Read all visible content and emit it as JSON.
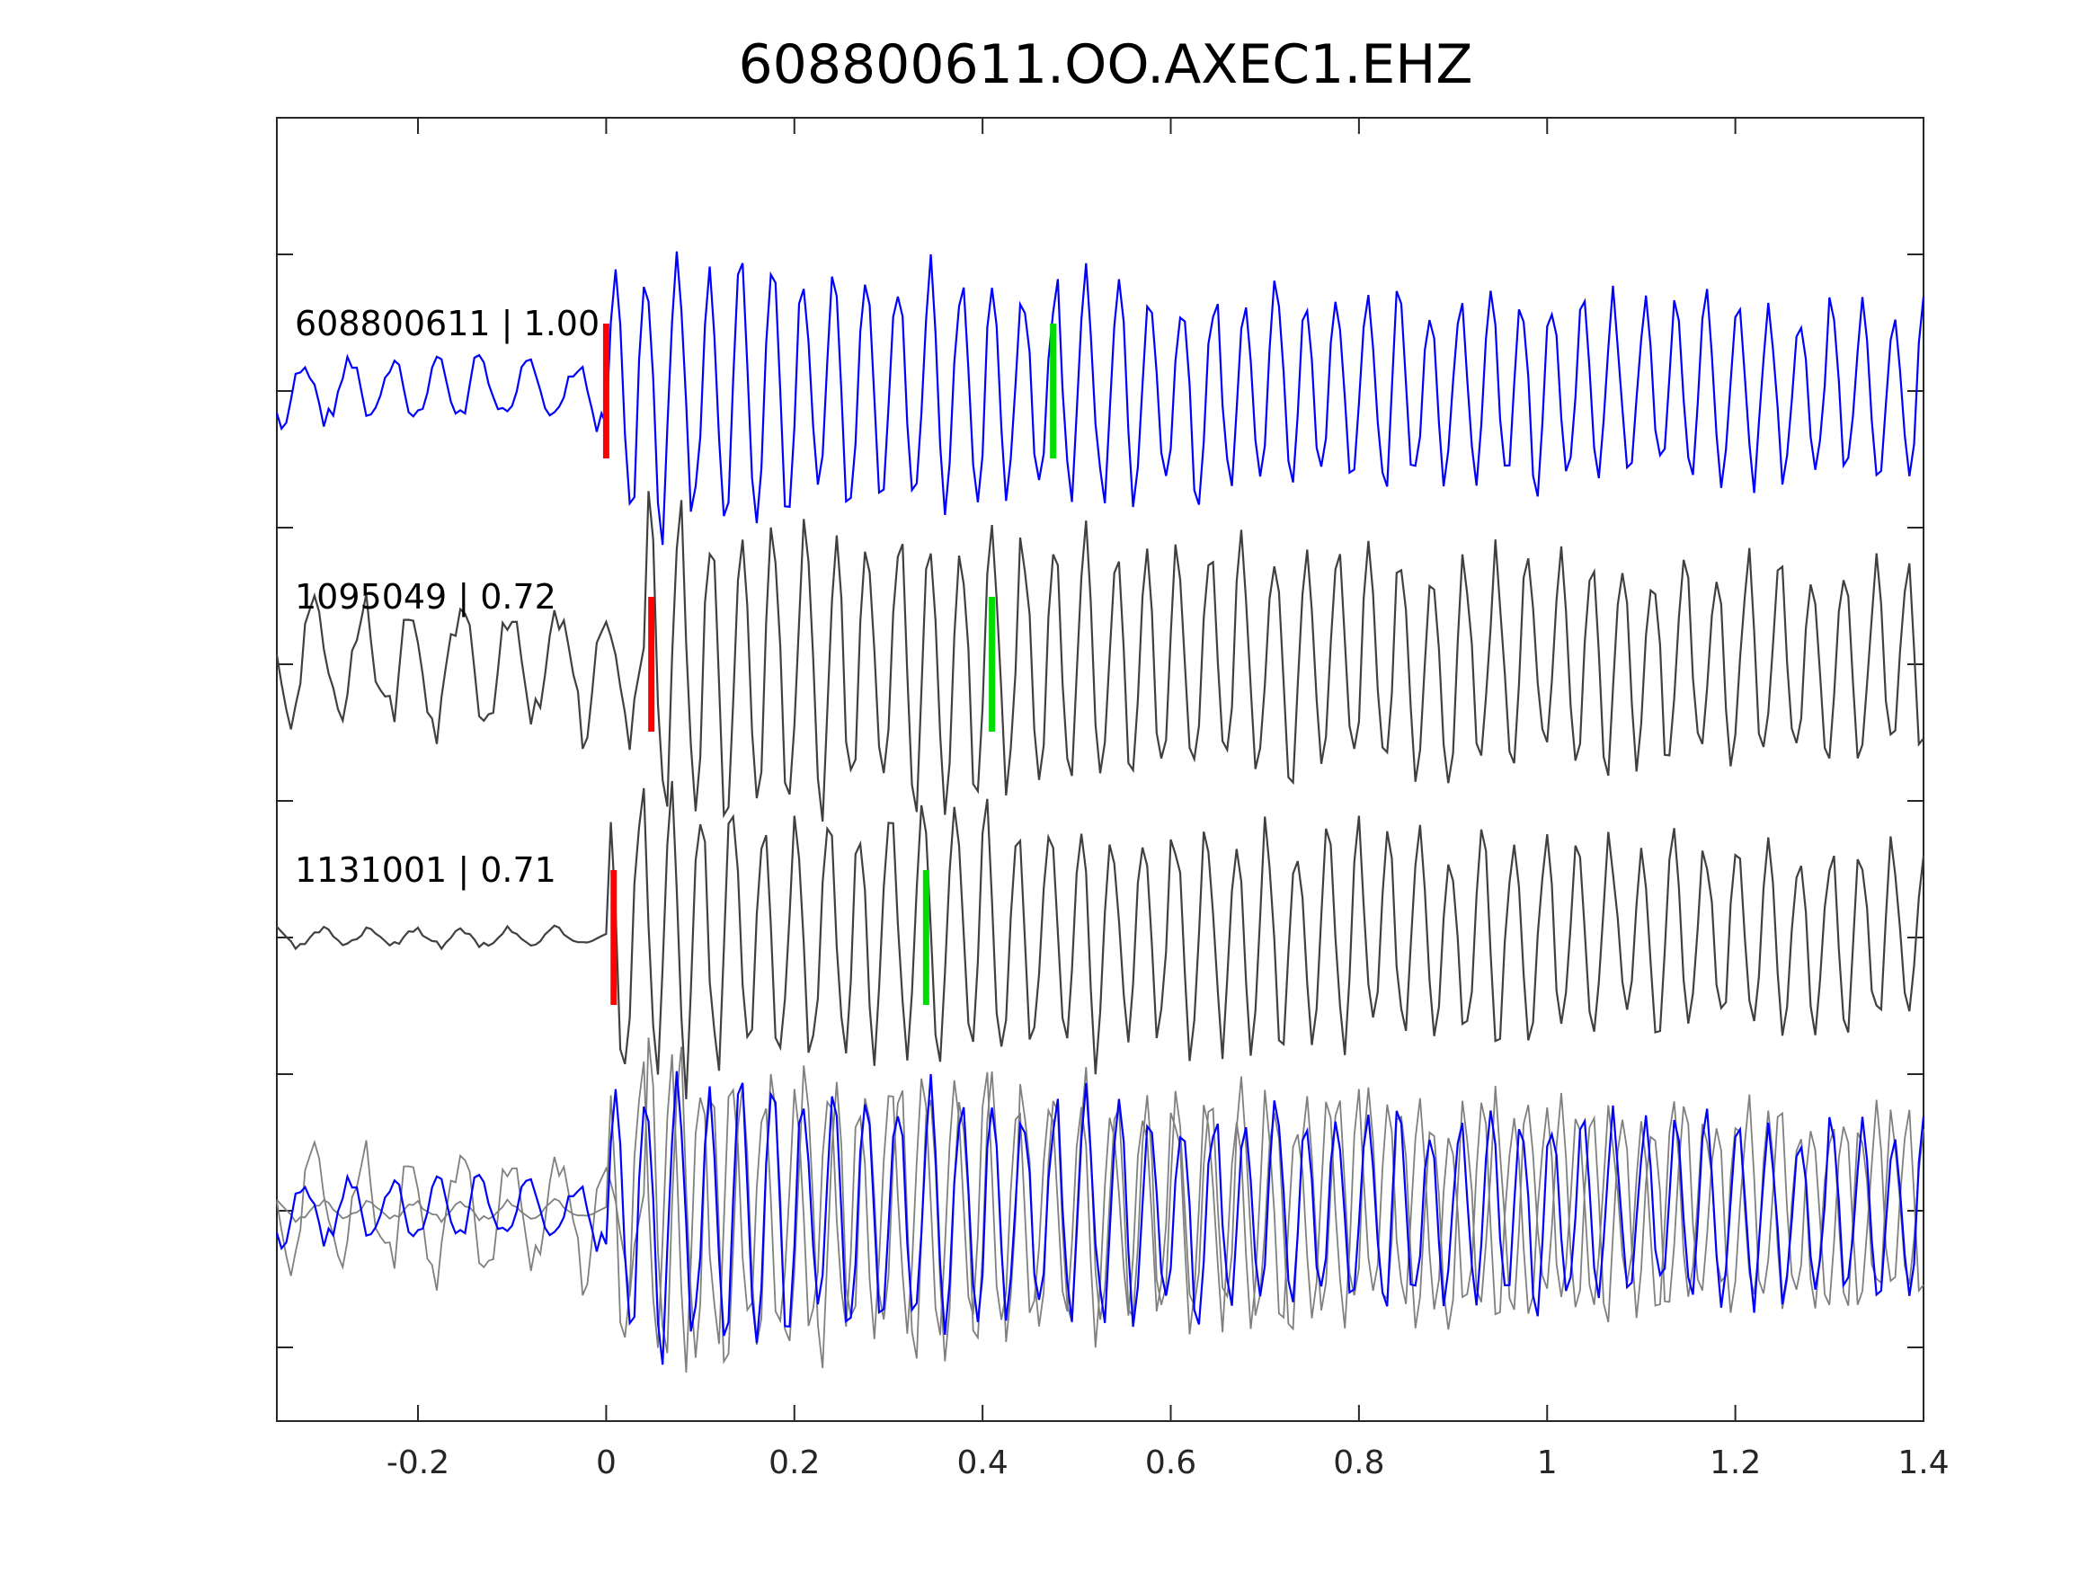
{
  "chart_data": {
    "type": "line",
    "title": "608800611.OO.AXEC1.EHZ",
    "xlabel": "",
    "ylabel": "",
    "xlim": [
      -0.35,
      1.4
    ],
    "xticks": [
      -0.2,
      0,
      0.2,
      0.4,
      0.6,
      0.8,
      1,
      1.2,
      1.4
    ],
    "xtick_labels": [
      "-0.2",
      "0",
      "0.2",
      "0.4",
      "0.6",
      "0.8",
      "1",
      "1.2",
      "1.4"
    ],
    "grid": false,
    "legend": null,
    "colors": {
      "template": "#0000ff",
      "match": "#404040",
      "overlay_match": "#808080",
      "p_pick": "#ff0000",
      "s_pick": "#00dd00",
      "axis": "#262626"
    },
    "traces": [
      {
        "label": "608800611 | 1.00",
        "id": "608800611",
        "cc": 1.0,
        "color": "#0000ff",
        "p_pick": 0.0,
        "s_pick": 0.475,
        "onset": 0.0,
        "pre_amp": 0.22,
        "post_amp": 0.75,
        "seed": 1
      },
      {
        "label": "1095049 | 0.72",
        "id": "1095049",
        "cc": 0.72,
        "color": "#404040",
        "p_pick": 0.048,
        "s_pick": 0.41,
        "onset": 0.045,
        "pre_amp": 0.45,
        "post_amp": 0.85,
        "seed": 2
      },
      {
        "label": "1131001 | 0.71",
        "id": "1131001",
        "cc": 0.71,
        "color": "#404040",
        "p_pick": 0.008,
        "s_pick": 0.34,
        "onset": 0.005,
        "pre_amp": 0.06,
        "post_amp": 0.8,
        "seed": 3
      }
    ],
    "overlay": {
      "description_none": true
    }
  }
}
